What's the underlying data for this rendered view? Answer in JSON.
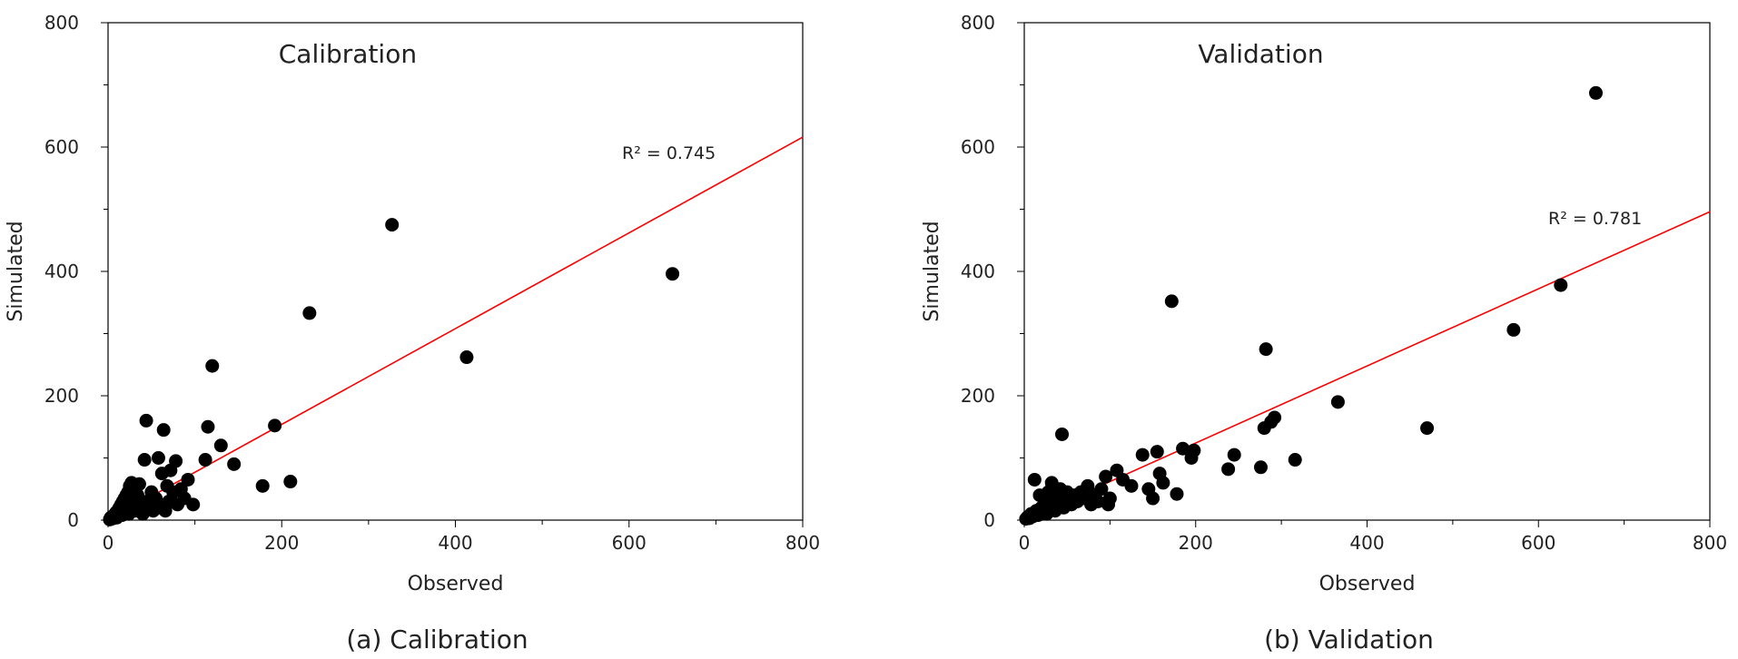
{
  "chart_data": [
    {
      "type": "scatter",
      "title": "Calibration",
      "caption": "(a) Calibration",
      "xlabel": "Observed",
      "ylabel": "Simulated",
      "xlim": [
        0,
        800
      ],
      "ylim": [
        0,
        800
      ],
      "xticks": [
        "0",
        "200",
        "400",
        "600",
        "800"
      ],
      "yticks": [
        "0",
        "200",
        "400",
        "600",
        "800"
      ],
      "r2_label": "R² = 0.745",
      "trendline": {
        "slope": 0.77,
        "intercept": 0,
        "color": "#ff0000"
      },
      "marker_color": "#000000",
      "points": [
        [
          2,
          1
        ],
        [
          3,
          4
        ],
        [
          4,
          2
        ],
        [
          5,
          6
        ],
        [
          6,
          3
        ],
        [
          7,
          8
        ],
        [
          8,
          5
        ],
        [
          9,
          12
        ],
        [
          10,
          4
        ],
        [
          11,
          15
        ],
        [
          12,
          7
        ],
        [
          13,
          20
        ],
        [
          14,
          10
        ],
        [
          15,
          25
        ],
        [
          16,
          8
        ],
        [
          17,
          30
        ],
        [
          18,
          12
        ],
        [
          19,
          35
        ],
        [
          20,
          15
        ],
        [
          21,
          40
        ],
        [
          22,
          18
        ],
        [
          23,
          45
        ],
        [
          24,
          10
        ],
        [
          25,
          55
        ],
        [
          26,
          20
        ],
        [
          27,
          60
        ],
        [
          28,
          25
        ],
        [
          30,
          50
        ],
        [
          32,
          15
        ],
        [
          34,
          40
        ],
        [
          36,
          58
        ],
        [
          38,
          20
        ],
        [
          40,
          10
        ],
        [
          42,
          97
        ],
        [
          44,
          160
        ],
        [
          45,
          30
        ],
        [
          48,
          20
        ],
        [
          50,
          45
        ],
        [
          52,
          15
        ],
        [
          55,
          35
        ],
        [
          58,
          100
        ],
        [
          60,
          20
        ],
        [
          62,
          75
        ],
        [
          64,
          145
        ],
        [
          66,
          15
        ],
        [
          68,
          55
        ],
        [
          70,
          30
        ],
        [
          72,
          80
        ],
        [
          75,
          45
        ],
        [
          78,
          95
        ],
        [
          80,
          25
        ],
        [
          84,
          50
        ],
        [
          88,
          35
        ],
        [
          92,
          65
        ],
        [
          98,
          25
        ],
        [
          112,
          97
        ],
        [
          115,
          150
        ],
        [
          120,
          248
        ],
        [
          130,
          120
        ],
        [
          145,
          90
        ],
        [
          178,
          55
        ],
        [
          192,
          152
        ],
        [
          210,
          62
        ],
        [
          232,
          333
        ],
        [
          327,
          475
        ],
        [
          413,
          262
        ],
        [
          650,
          396
        ]
      ]
    },
    {
      "type": "scatter",
      "title": "Validation",
      "caption": "(b) Validation",
      "xlabel": "Observed",
      "ylabel": "Simulated",
      "xlim": [
        0,
        800
      ],
      "ylim": [
        0,
        800
      ],
      "xticks": [
        "0",
        "200",
        "400",
        "600",
        "800"
      ],
      "yticks": [
        "0",
        "200",
        "400",
        "600",
        "800"
      ],
      "r2_label": "R² = 0.781",
      "trendline": {
        "slope": 0.62,
        "intercept": 0,
        "color": "#ff0000"
      },
      "marker_color": "#000000",
      "points": [
        [
          2,
          2
        ],
        [
          4,
          5
        ],
        [
          6,
          3
        ],
        [
          8,
          10
        ],
        [
          10,
          6
        ],
        [
          12,
          65
        ],
        [
          14,
          15
        ],
        [
          16,
          8
        ],
        [
          18,
          40
        ],
        [
          20,
          20
        ],
        [
          22,
          12
        ],
        [
          24,
          30
        ],
        [
          26,
          10
        ],
        [
          28,
          45
        ],
        [
          30,
          20
        ],
        [
          32,
          60
        ],
        [
          34,
          25
        ],
        [
          36,
          15
        ],
        [
          38,
          40
        ],
        [
          40,
          30
        ],
        [
          42,
          50
        ],
        [
          44,
          138
        ],
        [
          46,
          20
        ],
        [
          48,
          35
        ],
        [
          50,
          45
        ],
        [
          55,
          25
        ],
        [
          58,
          40
        ],
        [
          62,
          30
        ],
        [
          66,
          45
        ],
        [
          70,
          35
        ],
        [
          74,
          55
        ],
        [
          78,
          25
        ],
        [
          82,
          40
        ],
        [
          86,
          30
        ],
        [
          90,
          50
        ],
        [
          95,
          70
        ],
        [
          98,
          25
        ],
        [
          100,
          35
        ],
        [
          108,
          80
        ],
        [
          115,
          65
        ],
        [
          125,
          55
        ],
        [
          138,
          105
        ],
        [
          145,
          50
        ],
        [
          150,
          35
        ],
        [
          155,
          110
        ],
        [
          158,
          75
        ],
        [
          162,
          60
        ],
        [
          172,
          352
        ],
        [
          178,
          42
        ],
        [
          185,
          115
        ],
        [
          195,
          100
        ],
        [
          198,
          112
        ],
        [
          238,
          82
        ],
        [
          245,
          105
        ],
        [
          276,
          85
        ],
        [
          280,
          148
        ],
        [
          282,
          275
        ],
        [
          288,
          158
        ],
        [
          292,
          165
        ],
        [
          316,
          97
        ],
        [
          366,
          190
        ],
        [
          470,
          148
        ],
        [
          571,
          306
        ],
        [
          626,
          378
        ],
        [
          667,
          687
        ]
      ]
    }
  ]
}
